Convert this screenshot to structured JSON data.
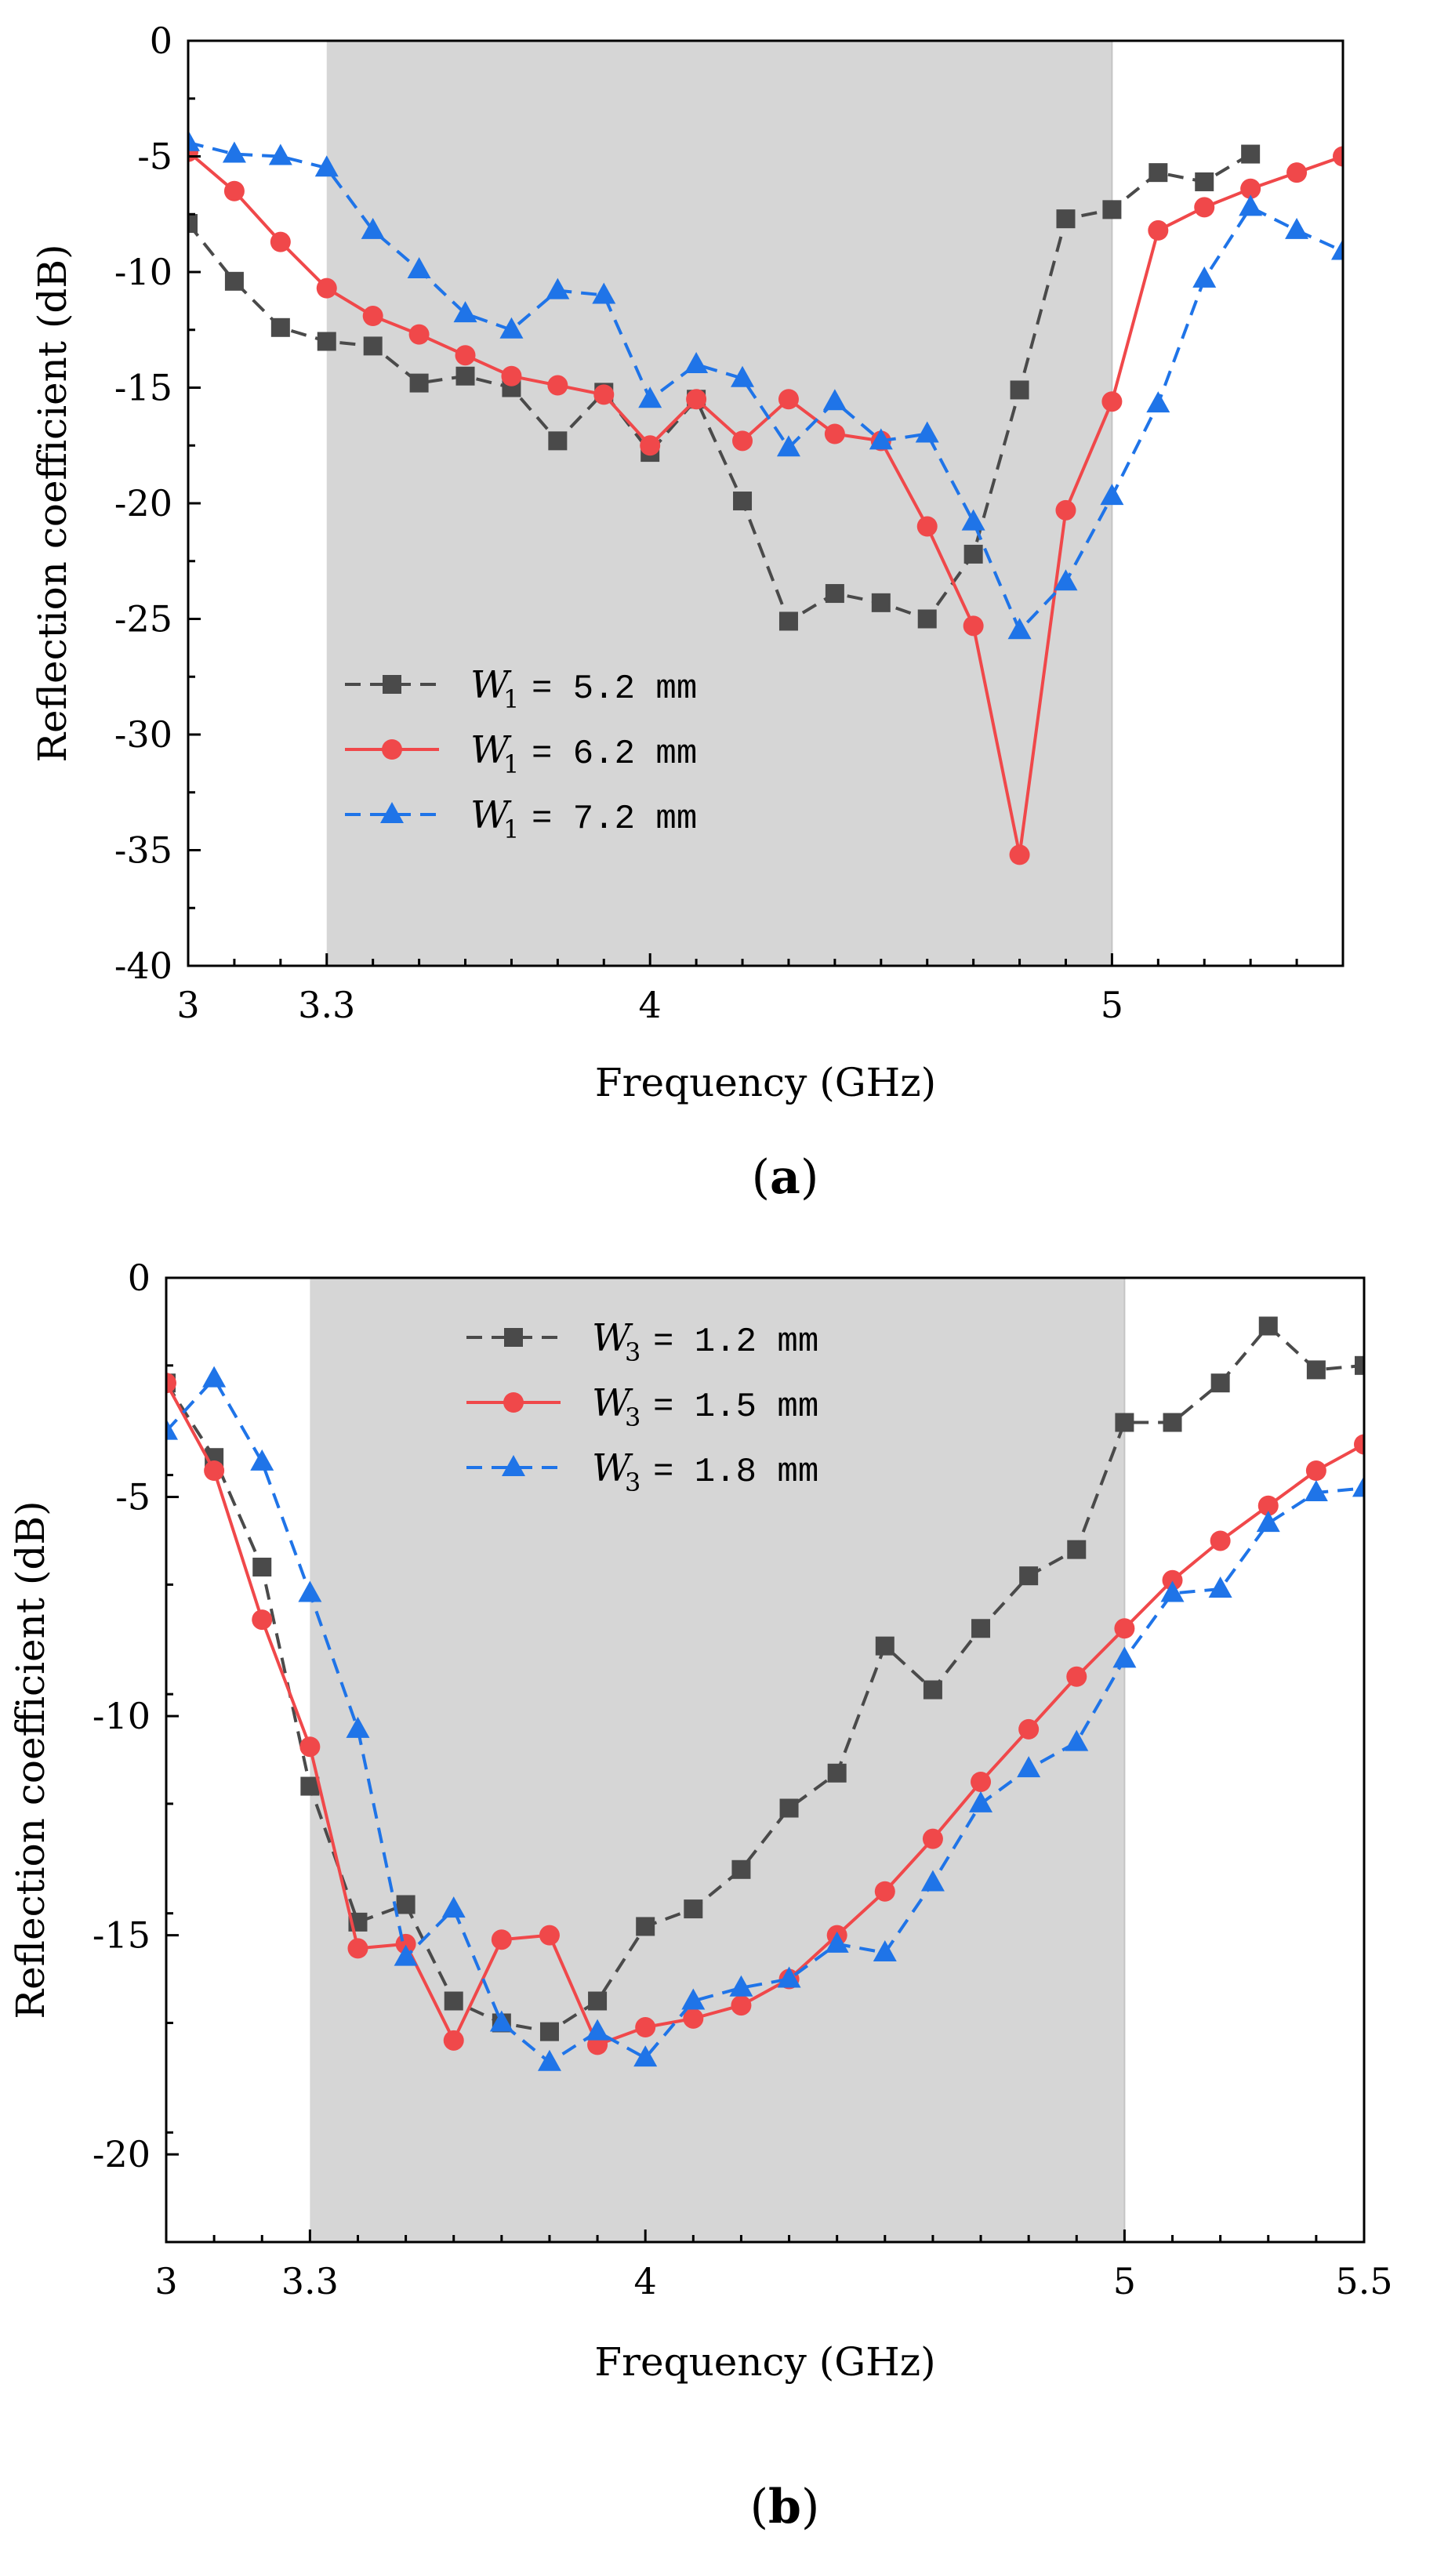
{
  "colors": {
    "band": "#d6d6d6",
    "axis": "#000000",
    "series_black": "#4a4a4a",
    "series_red": "#f0484a",
    "series_blue": "#1f74e8"
  },
  "chart_data": [
    {
      "type": "line",
      "panel_label": "(a)",
      "panel_letter": "a",
      "xlabel": "Frequency (GHz)",
      "ylabel": "Reflection coefficient (dB)",
      "xlim": [
        3.0,
        5.5
      ],
      "ylim": [
        -40,
        0
      ],
      "xticks": [
        3,
        3.3,
        4,
        5
      ],
      "xtick_labels": [
        "3",
        "3.3",
        "4",
        "5"
      ],
      "yticks": [
        0,
        -5,
        -10,
        -15,
        -20,
        -25,
        -30,
        -35,
        -40
      ],
      "ytick_labels": [
        "0",
        "-5",
        "-10",
        "-15",
        "-20",
        "-25",
        "-30",
        "-35",
        "-40"
      ],
      "shaded_band": [
        3.3,
        5.0
      ],
      "legend_position": "lower-left",
      "series": [
        {
          "name": "W1 = 5.2 mm",
          "sym": "W",
          "sub": "1",
          "eq": "= 5.2 mm",
          "color": "#4a4a4a",
          "marker": "square",
          "dash": "dashed",
          "x": [
            3.0,
            3.1,
            3.2,
            3.3,
            3.4,
            3.5,
            3.6,
            3.7,
            3.8,
            3.9,
            4.0,
            4.1,
            4.2,
            4.3,
            4.4,
            4.5,
            4.6,
            4.7,
            4.8,
            4.9,
            5.0,
            5.1,
            5.2,
            5.3
          ],
          "values": [
            -7.9,
            -10.4,
            -12.4,
            -13.0,
            -13.2,
            -14.8,
            -14.5,
            -15.0,
            -17.3,
            -15.2,
            -17.8,
            -15.5,
            -19.9,
            -25.1,
            -23.9,
            -24.3,
            -25.0,
            -22.2,
            -15.1,
            -7.7,
            -7.3,
            -5.7,
            -6.1,
            -4.9
          ]
        },
        {
          "name": "W1 = 6.2 mm",
          "sym": "W",
          "sub": "1",
          "eq": "= 6.2 mm",
          "color": "#f0484a",
          "marker": "circle",
          "dash": "solid",
          "x": [
            3.0,
            3.1,
            3.2,
            3.3,
            3.4,
            3.5,
            3.6,
            3.7,
            3.8,
            3.9,
            4.0,
            4.1,
            4.2,
            4.3,
            4.4,
            4.5,
            4.6,
            4.7,
            4.8,
            4.9,
            5.0,
            5.1,
            5.2,
            5.3,
            5.4,
            5.5
          ],
          "values": [
            -4.8,
            -6.5,
            -8.7,
            -10.7,
            -11.9,
            -12.7,
            -13.6,
            -14.5,
            -14.9,
            -15.3,
            -17.5,
            -15.5,
            -17.3,
            -15.5,
            -17.0,
            -17.3,
            -21.0,
            -25.3,
            -35.2,
            -20.3,
            -15.6,
            -8.2,
            -7.2,
            -6.4,
            -5.7,
            -5.0
          ]
        },
        {
          "name": "W1 = 7.2 mm",
          "sym": "W",
          "sub": "1",
          "eq": "= 7.2 mm",
          "color": "#1f74e8",
          "marker": "triangle",
          "dash": "dashed",
          "x": [
            3.0,
            3.1,
            3.2,
            3.3,
            3.4,
            3.5,
            3.6,
            3.7,
            3.8,
            3.9,
            4.0,
            4.1,
            4.2,
            4.3,
            4.4,
            4.5,
            4.6,
            4.7,
            4.8,
            4.9,
            5.0,
            5.1,
            5.2,
            5.3,
            5.4,
            5.5
          ],
          "values": [
            -4.4,
            -4.9,
            -5.0,
            -5.5,
            -8.2,
            -9.9,
            -11.8,
            -12.5,
            -10.8,
            -11.0,
            -15.5,
            -14.0,
            -14.6,
            -17.6,
            -15.6,
            -17.3,
            -17.0,
            -20.8,
            -25.5,
            -23.4,
            -19.7,
            -15.7,
            -10.3,
            -7.2,
            -8.2,
            -9.1
          ]
        }
      ]
    },
    {
      "type": "line",
      "panel_label": "(b)",
      "panel_letter": "b",
      "xlabel": "Frequency (GHz)",
      "ylabel": "Reflection coefficient (dB)",
      "xlim": [
        3.0,
        5.5
      ],
      "ylim": [
        -22,
        0
      ],
      "xticks": [
        3,
        3.3,
        4,
        5,
        5.5
      ],
      "xtick_labels": [
        "3",
        "3.3",
        "4",
        "5",
        "5.5"
      ],
      "yticks": [
        0,
        -5,
        -10,
        -15,
        -20
      ],
      "ytick_labels": [
        "0",
        "-5",
        "-10",
        "-15",
        "-20"
      ],
      "shaded_band": [
        3.3,
        5.0
      ],
      "legend_position": "top-center",
      "series": [
        {
          "name": "W3 = 1.2 mm",
          "sym": "W",
          "sub": "3",
          "eq": "= 1.2 mm",
          "color": "#4a4a4a",
          "marker": "square",
          "dash": "dashed",
          "x": [
            3.0,
            3.1,
            3.2,
            3.3,
            3.4,
            3.5,
            3.6,
            3.7,
            3.8,
            3.9,
            4.0,
            4.1,
            4.2,
            4.3,
            4.4,
            4.5,
            4.6,
            4.7,
            4.8,
            4.9,
            5.0,
            5.1,
            5.2,
            5.3,
            5.4,
            5.5
          ],
          "values": [
            -2.4,
            -4.1,
            -6.6,
            -11.6,
            -14.7,
            -14.3,
            -16.5,
            -17.0,
            -17.2,
            -16.5,
            -14.8,
            -14.4,
            -13.5,
            -12.1,
            -11.3,
            -8.4,
            -9.4,
            -8.0,
            -6.8,
            -6.2,
            -3.3,
            -3.3,
            -2.4,
            -1.1,
            -2.1,
            -2.0
          ]
        },
        {
          "name": "W3 = 1.5 mm",
          "sym": "W",
          "sub": "3",
          "eq": "= 1.5 mm",
          "color": "#f0484a",
          "marker": "circle",
          "dash": "solid",
          "x": [
            3.0,
            3.1,
            3.2,
            3.3,
            3.4,
            3.5,
            3.6,
            3.7,
            3.8,
            3.9,
            4.0,
            4.1,
            4.2,
            4.3,
            4.4,
            4.5,
            4.6,
            4.7,
            4.8,
            4.9,
            5.0,
            5.1,
            5.2,
            5.3,
            5.4,
            5.5
          ],
          "values": [
            -2.4,
            -4.4,
            -7.8,
            -10.7,
            -15.3,
            -15.2,
            -17.4,
            -15.1,
            -15.0,
            -17.5,
            -17.1,
            -16.9,
            -16.6,
            -16.0,
            -15.0,
            -14.0,
            -12.8,
            -11.5,
            -10.3,
            -9.1,
            -8.0,
            -6.9,
            -6.0,
            -5.2,
            -4.4,
            -3.8
          ]
        },
        {
          "name": "W3 = 1.8 mm",
          "sym": "W",
          "sub": "3",
          "eq": "= 1.8 mm",
          "color": "#1f74e8",
          "marker": "triangle",
          "dash": "dashed",
          "x": [
            3.0,
            3.1,
            3.2,
            3.3,
            3.4,
            3.5,
            3.6,
            3.7,
            3.8,
            3.9,
            4.0,
            4.1,
            4.2,
            4.3,
            4.4,
            4.5,
            4.6,
            4.7,
            4.8,
            4.9,
            5.0,
            5.1,
            5.2,
            5.3,
            5.4,
            5.5
          ],
          "values": [
            -3.5,
            -2.3,
            -4.2,
            -7.2,
            -10.3,
            -15.5,
            -14.4,
            -17.0,
            -17.9,
            -17.2,
            -17.8,
            -16.5,
            -16.2,
            -16.0,
            -15.2,
            -15.4,
            -13.8,
            -12.0,
            -11.2,
            -10.6,
            -8.7,
            -7.2,
            -7.1,
            -5.6,
            -4.9,
            -4.8
          ]
        }
      ]
    }
  ]
}
